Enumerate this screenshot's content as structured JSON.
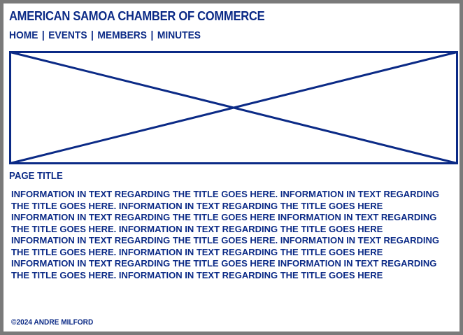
{
  "header": {
    "title": "AMERICAN SAMOA CHAMBER OF COMMERCE"
  },
  "nav": {
    "items": [
      {
        "label": "HOME"
      },
      {
        "label": "EVENTS"
      },
      {
        "label": "MEMBERS"
      },
      {
        "label": "MINUTES"
      }
    ],
    "separator": "|"
  },
  "hero": {
    "icon": "image-placeholder-icon"
  },
  "main": {
    "page_title": "PAGE TITLE",
    "paragraphs": [
      "INFORMATION IN TEXT REGARDING THE TITLE GOES HERE. INFORMATION IN TEXT REGARDING THE TITLE GOES HERE. INFORMATION IN TEXT REGARDING THE TITLE GOES HERE INFORMATION IN TEXT REGARDING THE TITLE GOES HERE INFORMATION IN TEXT REGARDING THE TITLE GOES HERE. INFORMATION IN TEXT REGARDING THE TITLE GOES HERE",
      "INFORMATION IN TEXT REGARDING THE TITLE GOES HERE. INFORMATION IN TEXT REGARDING THE TITLE GOES HERE. INFORMATION IN TEXT REGARDING THE TITLE GOES HERE INFORMATION IN TEXT REGARDING THE TITLE GOES HERE INFORMATION IN TEXT REGARDING THE TITLE GOES HERE. INFORMATION IN TEXT REGARDING THE TITLE GOES HERE"
    ]
  },
  "footer": {
    "copyright": "©2024 ANDRE MILFORD"
  },
  "colors": {
    "primary": "#0b2a86",
    "frame": "#7a7a7a",
    "background": "#ffffff"
  }
}
